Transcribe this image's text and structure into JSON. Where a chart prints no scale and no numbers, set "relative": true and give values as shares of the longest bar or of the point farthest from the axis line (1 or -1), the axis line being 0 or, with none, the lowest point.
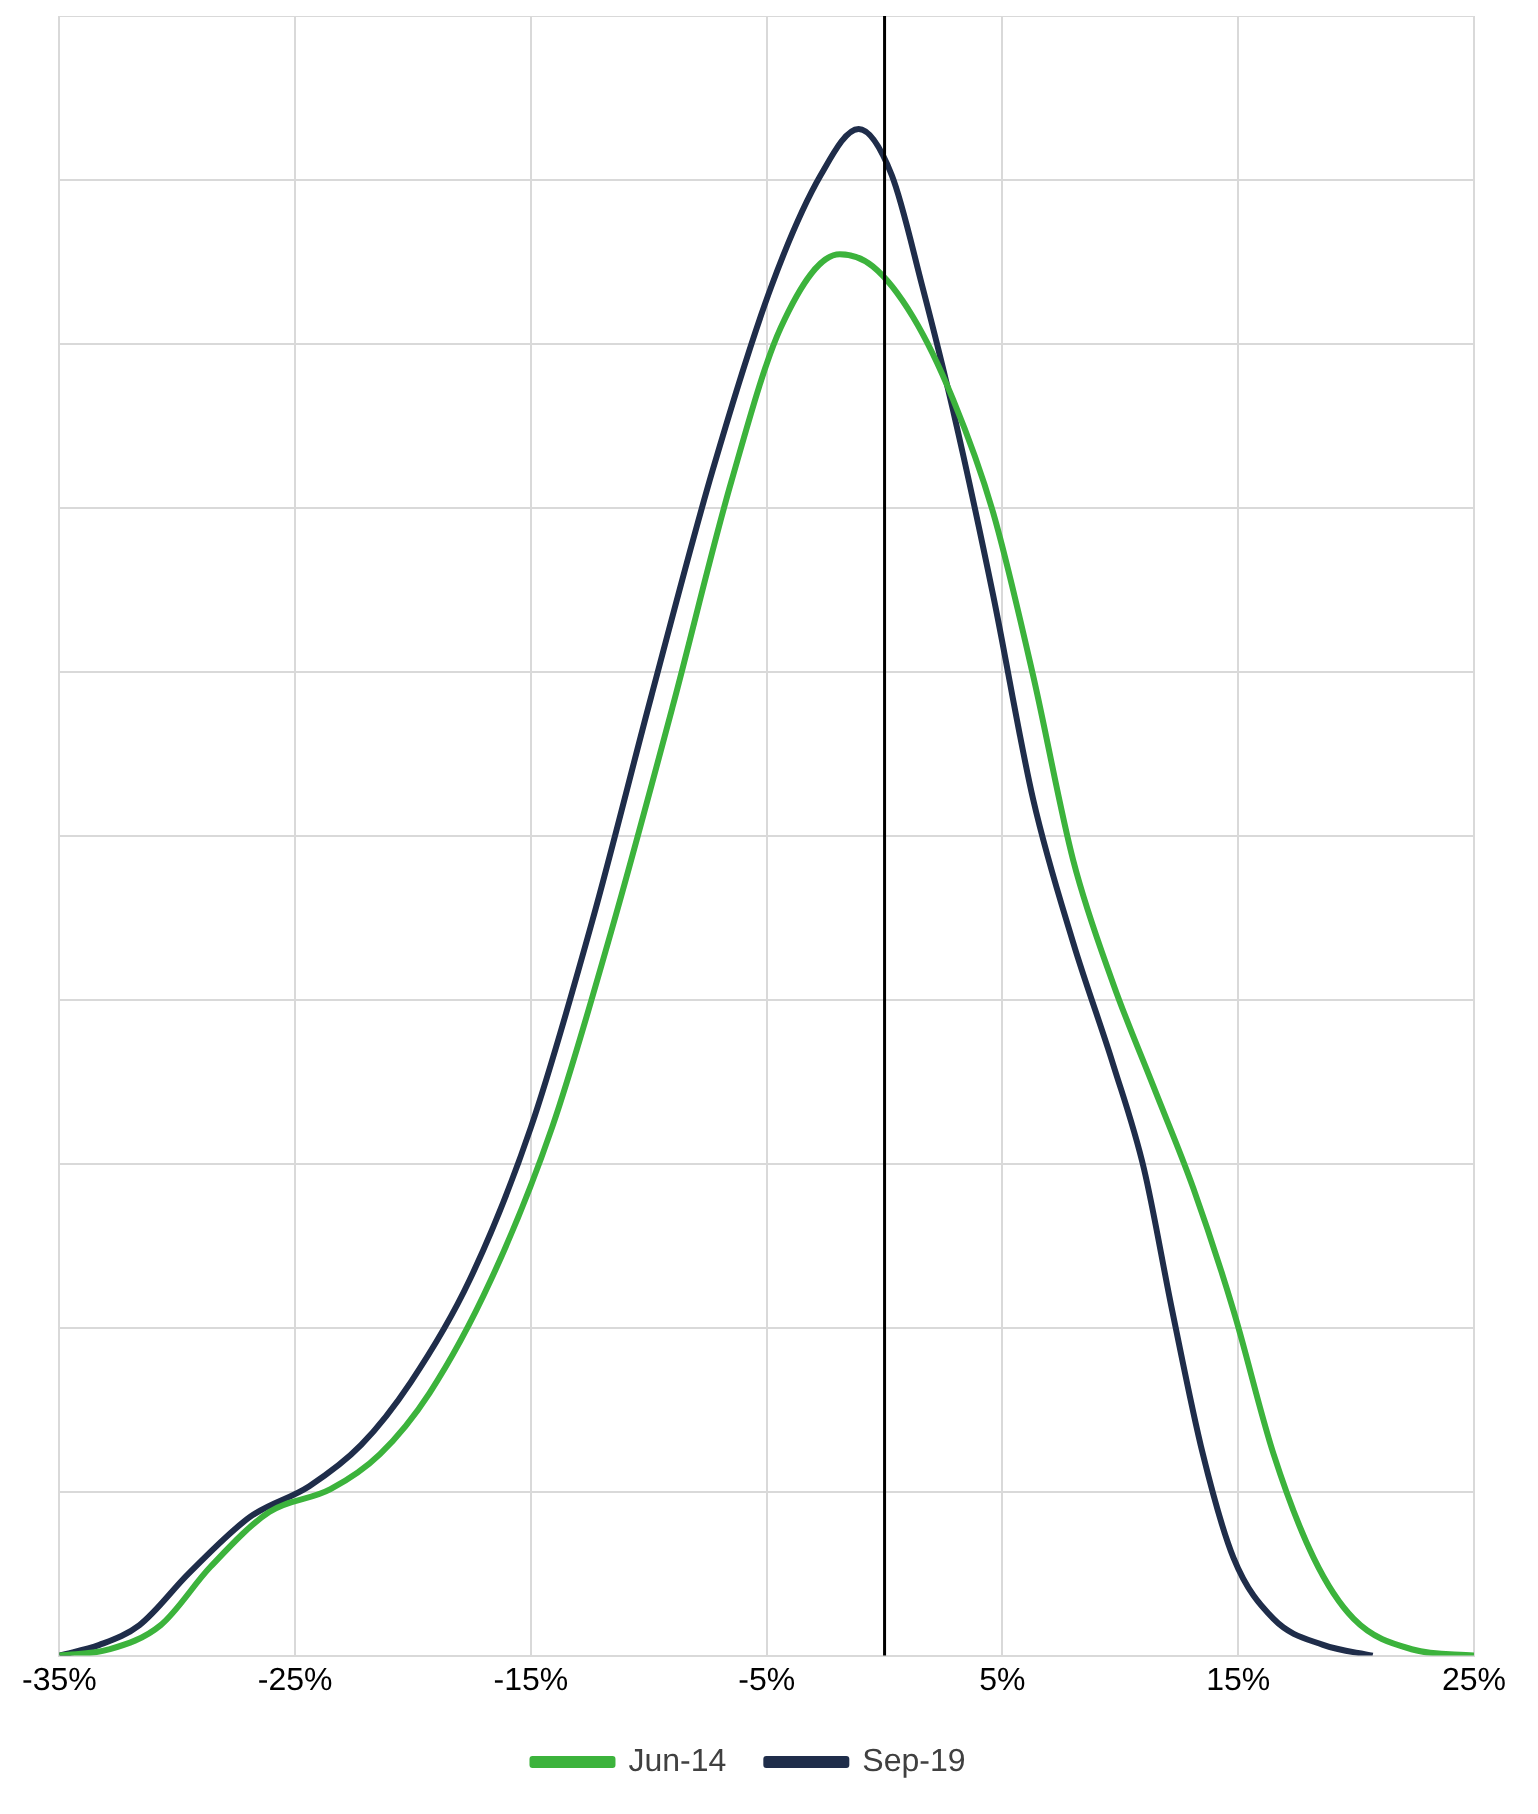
{
  "chart_data": {
    "type": "line",
    "relative": true,
    "xlim": [
      -35,
      25
    ],
    "xticks": [
      {
        "value": -35,
        "label": "-35%"
      },
      {
        "value": -25,
        "label": "-25%"
      },
      {
        "value": -15,
        "label": "-15%"
      },
      {
        "value": -5,
        "label": "-5%"
      },
      {
        "value": 5,
        "label": "5%"
      },
      {
        "value": 15,
        "label": "15%"
      },
      {
        "value": 25,
        "label": "25%"
      }
    ],
    "grid": true,
    "legend": "bottom",
    "marker": "none",
    "line_style": "solid",
    "ref_lines": [
      {
        "axis": "x",
        "value": 0,
        "color": "#000000"
      }
    ],
    "series": [
      {
        "name": "Jun-14",
        "color": "#3cb33c",
        "x": [
          -35,
          -32.9,
          -30.7,
          -28.6,
          -26.1,
          -23.5,
          -21.4,
          -19.3,
          -16.7,
          -14.1,
          -11.6,
          -9,
          -6.5,
          -4.4,
          -1.9,
          -0.5,
          1.2,
          2.9,
          4.6,
          6.3,
          8,
          9.7,
          11.4,
          13.1,
          14.8,
          16.5,
          18.2,
          19.9,
          22.4,
          25
        ],
        "values": [
          0,
          0.004,
          0.02,
          0.058,
          0.094,
          0.109,
          0.132,
          0.172,
          0.246,
          0.346,
          0.474,
          0.621,
          0.769,
          0.87,
          0.918,
          0.91,
          0.877,
          0.823,
          0.749,
          0.642,
          0.521,
          0.44,
          0.373,
          0.306,
          0.226,
          0.132,
          0.064,
          0.024,
          0.004,
          0
        ]
      },
      {
        "name": "Sep-19",
        "color": "#1f2d4a",
        "x": [
          -35,
          -33.3,
          -31.6,
          -29.5,
          -26.9,
          -24.4,
          -22.2,
          -20.1,
          -17.6,
          -15,
          -12.4,
          -9.9,
          -7.3,
          -4.8,
          -2.7,
          -1.1,
          0.3,
          1.6,
          2.9,
          4.6,
          6.3,
          8,
          9.7,
          11,
          12.2,
          13.5,
          14.8,
          16.5,
          18.6,
          20.7
        ],
        "values": [
          0,
          0.007,
          0.02,
          0.054,
          0.091,
          0.111,
          0.138,
          0.179,
          0.246,
          0.346,
          0.481,
          0.628,
          0.776,
          0.897,
          0.97,
          1,
          0.97,
          0.897,
          0.816,
          0.695,
          0.561,
          0.467,
          0.387,
          0.319,
          0.226,
          0.132,
          0.064,
          0.024,
          0.007,
          0
        ]
      }
    ]
  }
}
